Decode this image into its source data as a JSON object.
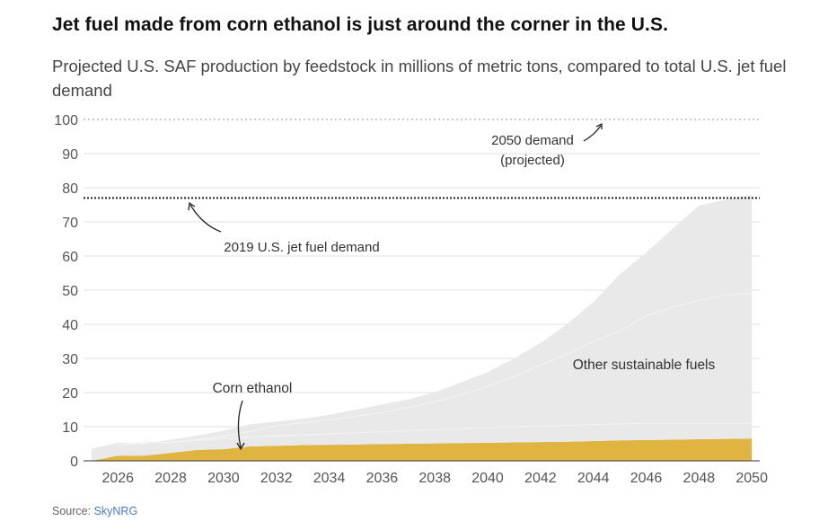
{
  "title": "Jet fuel made from corn ethanol is just around the corner in the U.S.",
  "subtitle": "Projected U.S. SAF production by feedstock in millions of metric tons, compared to total U.S. jet fuel demand",
  "source": {
    "prefix": "Source: ",
    "link": "SkyNRG"
  },
  "chart_data": {
    "type": "area",
    "stacked": true,
    "x": [
      2025,
      2026,
      2027,
      2028,
      2029,
      2030,
      2031,
      2032,
      2033,
      2034,
      2035,
      2036,
      2037,
      2038,
      2039,
      2040,
      2041,
      2042,
      2043,
      2044,
      2045,
      2046,
      2047,
      2048,
      2049,
      2050
    ],
    "series": [
      {
        "name": "Corn ethanol",
        "color": "#dfb441",
        "values": [
          0,
          1.5,
          1.5,
          2.3,
          3.2,
          3.4,
          4.2,
          4.4,
          4.6,
          4.7,
          4.8,
          4.9,
          5.0,
          5.1,
          5.2,
          5.3,
          5.4,
          5.5,
          5.6,
          5.8,
          6.0,
          6.1,
          6.2,
          6.3,
          6.4,
          6.5
        ]
      },
      {
        "name": "Other sustainable fuels",
        "color": "#e9e9e9",
        "values": [
          3.5,
          3.8,
          3.5,
          3.9,
          4.2,
          5.4,
          6.5,
          7.1,
          7.7,
          8.8,
          10.2,
          11.6,
          13.0,
          15.0,
          17.8,
          20.7,
          24.6,
          29.0,
          34.4,
          40.7,
          48.6,
          54.9,
          61.8,
          68.5,
          70.1,
          71.5
        ]
      }
    ],
    "reference_lines": [
      {
        "name": "2019 U.S. jet fuel demand",
        "value": 77,
        "style": "dotted"
      },
      {
        "name": "2050 demand (projected)",
        "value": 100,
        "style": "dotted"
      }
    ],
    "xticks": [
      2026,
      2028,
      2030,
      2032,
      2034,
      2036,
      2038,
      2040,
      2042,
      2044,
      2046,
      2048,
      2050
    ],
    "yticks": [
      0,
      10,
      20,
      30,
      40,
      50,
      60,
      70,
      80,
      90,
      100
    ],
    "xlim": [
      2024.7,
      2050.3
    ],
    "ylim": [
      0,
      100
    ],
    "grid": true,
    "annotations": {
      "demand_2050_line1": "2050 demand",
      "demand_2050_line2": "(projected)",
      "demand_2019": "2019 U.S. jet fuel demand",
      "corn_ethanol": "Corn ethanol",
      "other_fuels": "Other sustainable fuels"
    }
  }
}
